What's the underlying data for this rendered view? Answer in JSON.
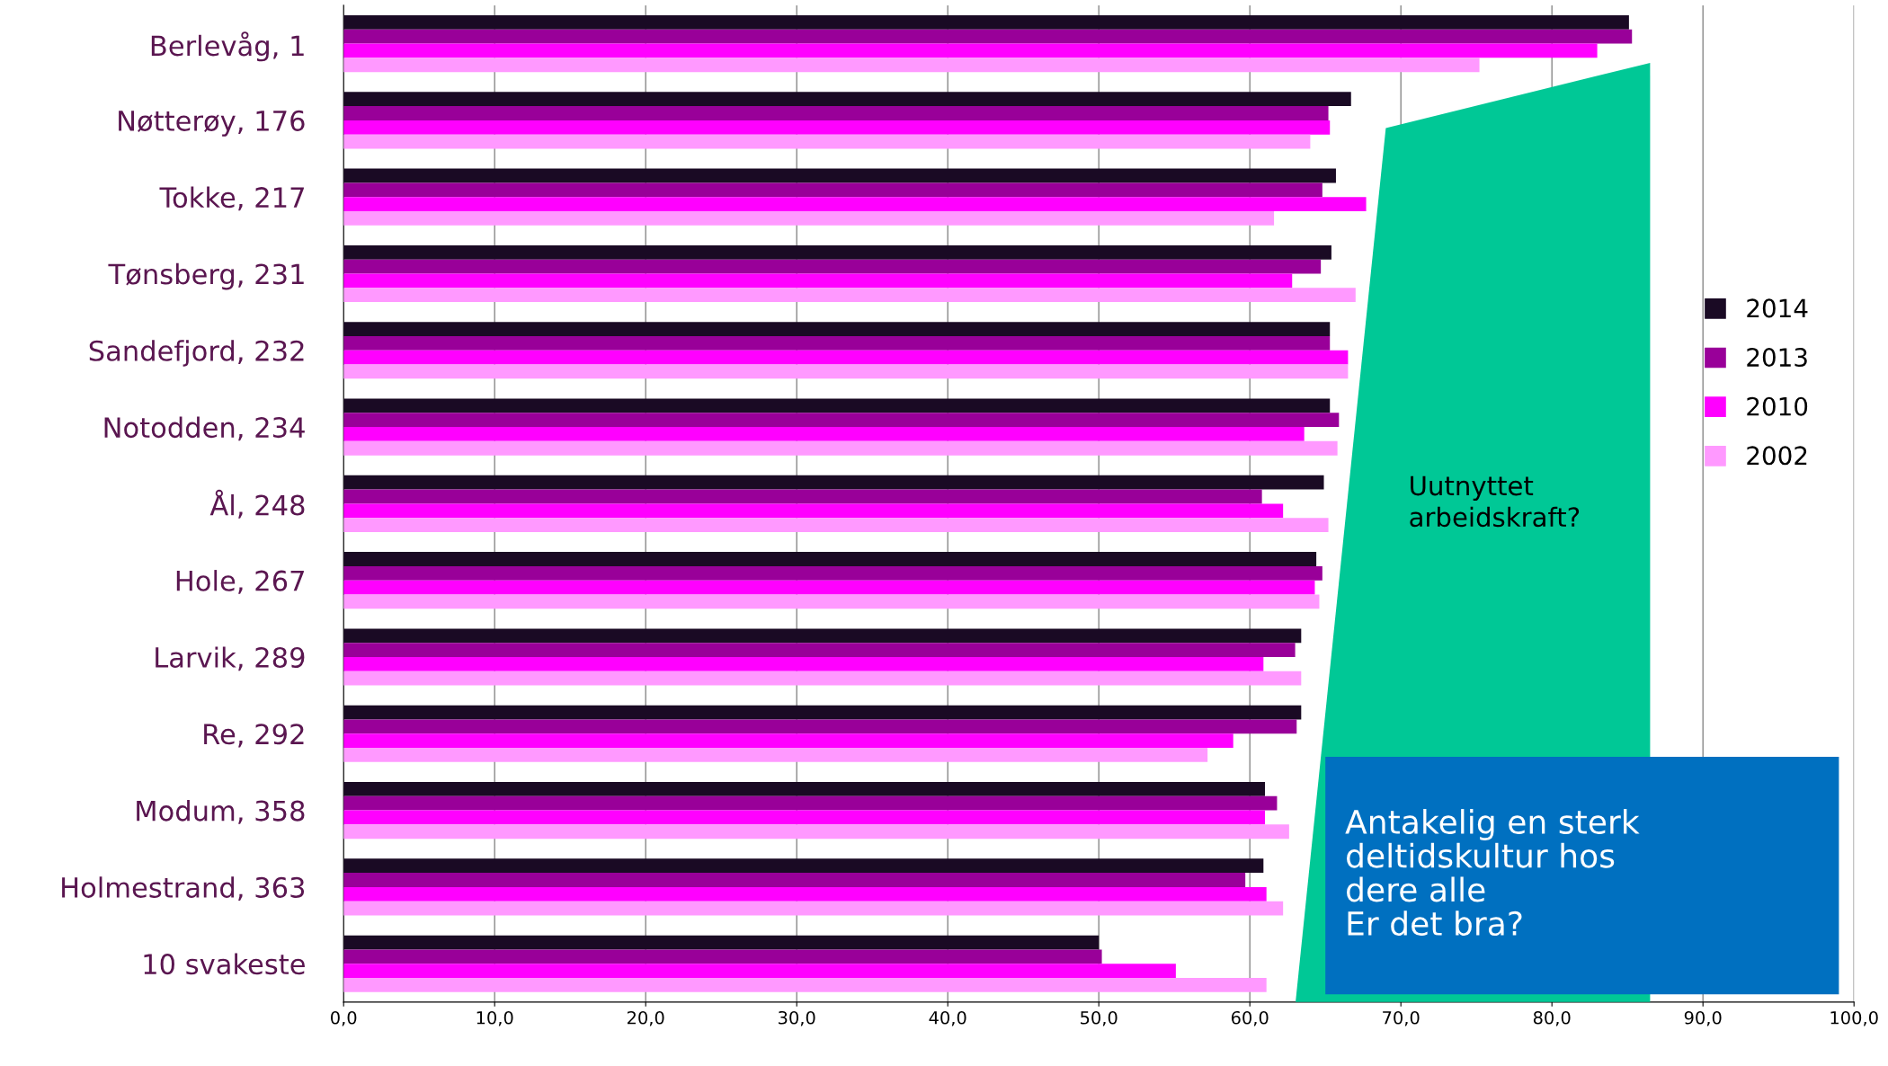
{
  "chart_data": {
    "type": "bar",
    "orientation": "horizontal",
    "categories": [
      "Berlevåg, 1",
      "Nøtterøy, 176",
      "Tokke, 217",
      "Tønsberg, 231",
      "Sandefjord, 232",
      "Notodden, 234",
      "Ål, 248",
      "Hole, 267",
      "Larvik, 289",
      "Re, 292",
      "Modum, 358",
      "Holmestrand, 363",
      "10 svakeste"
    ],
    "series": [
      {
        "name": "2014",
        "color": "#1a0a24",
        "values": [
          85.1,
          66.7,
          65.7,
          65.4,
          65.3,
          65.3,
          64.9,
          64.4,
          63.4,
          63.4,
          61.0,
          60.9,
          50.0
        ]
      },
      {
        "name": "2013",
        "color": "#990099",
        "values": [
          85.3,
          65.2,
          64.8,
          64.7,
          65.3,
          65.9,
          60.8,
          64.8,
          63.0,
          63.1,
          61.8,
          59.7,
          50.2
        ]
      },
      {
        "name": "2010",
        "color": "#ff00ff",
        "values": [
          83.0,
          65.3,
          67.7,
          62.8,
          66.5,
          63.6,
          62.2,
          64.3,
          60.9,
          58.9,
          61.0,
          61.1,
          55.1
        ]
      },
      {
        "name": "2002",
        "color": "#ff99ff",
        "values": [
          75.2,
          64.0,
          61.6,
          67.0,
          66.5,
          65.8,
          65.2,
          64.6,
          63.4,
          57.2,
          62.6,
          62.2,
          61.1
        ]
      }
    ],
    "xlim": [
      0,
      100
    ],
    "xticks": [
      {
        "value": 0,
        "label": "0,0"
      },
      {
        "value": 10,
        "label": "10,0"
      },
      {
        "value": 20,
        "label": "20,0"
      },
      {
        "value": 30,
        "label": "30,0"
      },
      {
        "value": 40,
        "label": "40,0"
      },
      {
        "value": 50,
        "label": "50,0"
      },
      {
        "value": 60,
        "label": "60,0"
      },
      {
        "value": 70,
        "label": "70,0"
      },
      {
        "value": 80,
        "label": "80,0"
      },
      {
        "value": 90,
        "label": "90,0"
      },
      {
        "value": 100,
        "label": "100,0"
      }
    ],
    "grid": "x",
    "legend": "right",
    "annotations": [
      "Uutnyttet\narbeidskraft?",
      "Antakelig en sterk\ndeltidskultur hos\ndere alle\nEr det bra?"
    ]
  }
}
